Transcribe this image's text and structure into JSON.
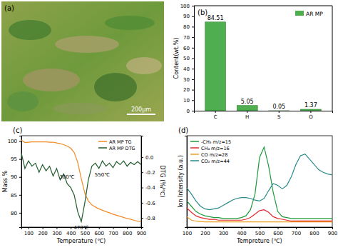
{
  "chart_data": [
    {
      "type": "image",
      "title": "(a)",
      "annotations": [
        "200μm"
      ]
    },
    {
      "type": "bar",
      "title": "(b)",
      "categories": [
        "C",
        "H",
        "S",
        "O"
      ],
      "series": [
        {
          "name": "AR MP",
          "color": "#4fae4f",
          "values": [
            84.51,
            5.05,
            0.05,
            1.37
          ]
        }
      ],
      "ylabel": "Content(wt.%)",
      "ylim": [
        0,
        100
      ],
      "yticks": [
        0,
        10,
        20,
        30,
        40,
        50,
        60,
        70,
        80,
        90,
        100
      ],
      "data_labels": true,
      "legend": "upper right"
    },
    {
      "type": "line",
      "title": "(c)",
      "xlabel": "Temperature (℃)",
      "ylabel": "Mass %",
      "y2label": "DTG (%/℃)",
      "x": [
        50,
        75,
        100,
        125,
        150,
        175,
        200,
        225,
        250,
        275,
        300,
        325,
        350,
        375,
        400,
        425,
        450,
        475,
        500,
        525,
        550,
        575,
        600,
        625,
        650,
        675,
        700,
        725,
        750,
        775,
        800,
        825,
        850,
        875,
        900
      ],
      "xlim": [
        50,
        900
      ],
      "xticks": [
        100,
        200,
        300,
        400,
        500,
        600,
        700,
        800,
        900
      ],
      "ylim": [
        76,
        101.5
      ],
      "yticks": [
        80,
        85,
        90,
        95,
        100
      ],
      "y2lim": [
        -0.92,
        0.28
      ],
      "y2ticks": [
        {
          "value": 0,
          "label": "0.0"
        },
        -0.2,
        -0.4,
        -0.6,
        -0.8
      ],
      "series": [
        {
          "name": "AR MP TG",
          "color": "#f08a24",
          "values": [
            100.3,
            99.6,
            99.7,
            99.8,
            99.8,
            99.8,
            99.8,
            99.8,
            99.7,
            99.7,
            99.5,
            99.3,
            99.0,
            98.6,
            98.0,
            96.8,
            94.0,
            89.5,
            85.5,
            83.3,
            82.2,
            81.6,
            81.1,
            80.7,
            80.3,
            80.0,
            79.6,
            79.3,
            79.0,
            78.7,
            78.4,
            78.2,
            77.9,
            77.7,
            77.5
          ]
        },
        {
          "name": "AR MP DTG",
          "color": "#1e5a2a",
          "axis": "y2",
          "values": [
            0.05,
            -0.15,
            -0.05,
            -0.12,
            -0.08,
            -0.2,
            -0.1,
            -0.18,
            -0.12,
            -0.25,
            -0.15,
            -0.3,
            -0.22,
            -0.35,
            -0.4,
            -0.5,
            -0.72,
            -0.85,
            -0.6,
            -0.3,
            -0.12,
            -0.08,
            -0.15,
            -0.05,
            -0.12,
            -0.08,
            -0.14,
            -0.06,
            -0.1,
            -0.05,
            -0.12,
            -0.07,
            -0.1,
            -0.06,
            -0.1
          ]
        }
      ],
      "annotations": [
        {
          "text": "300℃",
          "x": 300
        },
        {
          "text": "470℃",
          "x": 475
        },
        {
          "text": "550℃",
          "x": 550
        }
      ],
      "legend": "upper right"
    },
    {
      "type": "line",
      "title": "(d)",
      "xlabel": "Tempreture (℃)",
      "ylabel": "Ion Intensity (a.u.)",
      "x": [
        100,
        125,
        150,
        175,
        200,
        225,
        250,
        275,
        300,
        325,
        350,
        375,
        400,
        425,
        450,
        475,
        500,
        525,
        550,
        575,
        600,
        625,
        650,
        675,
        700,
        725,
        750,
        775,
        800,
        825,
        850,
        875,
        900
      ],
      "xlim": [
        100,
        900
      ],
      "xticks": [
        100,
        200,
        300,
        400,
        500,
        600,
        700,
        800,
        900
      ],
      "ylim": [
        0,
        1.05
      ],
      "tick_labels": "x",
      "series": [
        {
          "name": "-CH₃ m/z=15",
          "color": "#1f9a3a",
          "values": [
            0.3,
            0.24,
            0.18,
            0.15,
            0.13,
            0.12,
            0.11,
            0.11,
            0.1,
            0.1,
            0.1,
            0.1,
            0.11,
            0.13,
            0.2,
            0.38,
            0.8,
            0.92,
            0.7,
            0.4,
            0.18,
            0.12,
            0.11,
            0.1,
            0.1,
            0.1,
            0.1,
            0.1,
            0.1,
            0.1,
            0.1,
            0.1,
            0.1
          ]
        },
        {
          "name": "CH₄ m/z=16",
          "color": "#e0282c",
          "values": [
            0.22,
            0.17,
            0.13,
            0.11,
            0.1,
            0.09,
            0.09,
            0.08,
            0.08,
            0.08,
            0.08,
            0.08,
            0.08,
            0.09,
            0.11,
            0.15,
            0.19,
            0.2,
            0.17,
            0.12,
            0.1,
            0.09,
            0.08,
            0.07,
            0.07,
            0.07,
            0.07,
            0.07,
            0.07,
            0.07,
            0.07,
            0.07,
            0.07
          ]
        },
        {
          "name": "CO  m/z=28",
          "color": "#f0a020",
          "values": [
            0.12,
            0.08,
            0.07,
            0.065,
            0.06,
            0.06,
            0.06,
            0.06,
            0.06,
            0.06,
            0.06,
            0.06,
            0.06,
            0.06,
            0.06,
            0.06,
            0.06,
            0.06,
            0.06,
            0.06,
            0.06,
            0.06,
            0.06,
            0.06,
            0.06,
            0.06,
            0.06,
            0.06,
            0.06,
            0.06,
            0.06,
            0.06,
            0.06
          ]
        },
        {
          "name": "CO₂ m/z=44",
          "color": "#2a8a8a",
          "values": [
            0.45,
            0.38,
            0.3,
            0.24,
            0.21,
            0.2,
            0.21,
            0.22,
            0.25,
            0.28,
            0.31,
            0.33,
            0.34,
            0.34,
            0.33,
            0.31,
            0.3,
            0.33,
            0.42,
            0.5,
            0.48,
            0.44,
            0.48,
            0.58,
            0.72,
            0.82,
            0.84,
            0.78,
            0.72,
            0.66,
            0.63,
            0.61,
            0.6
          ]
        }
      ],
      "legend": "upper left"
    }
  ]
}
